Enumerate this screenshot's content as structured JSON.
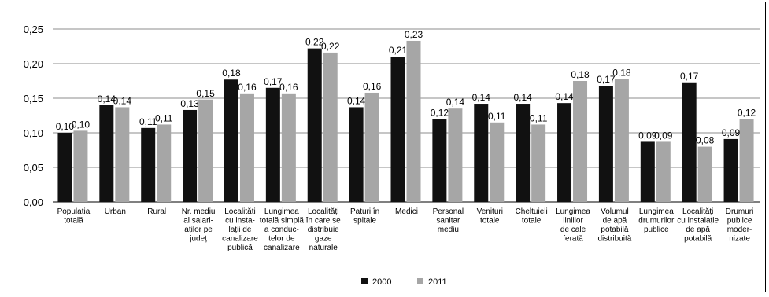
{
  "chart_data": {
    "type": "bar",
    "ylim": [
      0,
      0.25
    ],
    "yticks": [
      "0,00",
      "0,05",
      "0,10",
      "0,15",
      "0,20",
      "0,25"
    ],
    "grid": true,
    "legend_position": "bottom-center",
    "categories": [
      [
        "Populația",
        "totală"
      ],
      [
        "Urban"
      ],
      [
        "Rural"
      ],
      [
        "Nr. mediu",
        "al salari-",
        "aților pe",
        "județ"
      ],
      [
        "Localități",
        "cu insta-",
        "lații de",
        "canalizare",
        "publică"
      ],
      [
        "Lungimea",
        "totală simplă",
        "a conduc-",
        "telor de",
        "canalizare"
      ],
      [
        "Localități",
        "în care se",
        "distribuie",
        "gaze",
        "naturale"
      ],
      [
        "Paturi în",
        "spitale"
      ],
      [
        "Medici"
      ],
      [
        "Personal",
        "sanitar",
        "mediu"
      ],
      [
        "Venituri",
        "totale"
      ],
      [
        "Cheltuieli",
        "totale"
      ],
      [
        "Lungimea",
        "liniilor",
        "de cale",
        "ferată"
      ],
      [
        "Volumul",
        "de apă",
        "potabilă",
        "distribuită"
      ],
      [
        "Lungimea",
        "drumurilor",
        "publice"
      ],
      [
        "Localități",
        "cu instalație",
        "de apă",
        "potabilă"
      ],
      [
        "Drumuri",
        "publice",
        "moder-",
        "nizate"
      ]
    ],
    "series": [
      {
        "name": "2000",
        "color": "#111111",
        "values": [
          0.1,
          0.14,
          0.107,
          0.133,
          0.177,
          0.165,
          0.222,
          0.137,
          0.21,
          0.12,
          0.142,
          0.142,
          0.143,
          0.168,
          0.087,
          0.173,
          0.091
        ],
        "labels": [
          "0,10",
          "0,14",
          "0,11",
          "0,13",
          "0,18",
          "0,17",
          "0,22",
          "0,14",
          "0,21",
          "0,12",
          "0,14",
          "0,14",
          "0,14",
          "0,17",
          "0,09",
          "0,17",
          "0,09"
        ]
      },
      {
        "name": "2011",
        "color": "#a6a6a6",
        "values": [
          0.103,
          0.137,
          0.112,
          0.148,
          0.157,
          0.157,
          0.216,
          0.158,
          0.233,
          0.135,
          0.115,
          0.112,
          0.175,
          0.178,
          0.087,
          0.08,
          0.12
        ],
        "labels": [
          "0,10",
          "0,14",
          "0,11",
          "0,15",
          "0,16",
          "0,16",
          "0,22",
          "0,16",
          "0,23",
          "0,14",
          "0,11",
          "0,11",
          "0,18",
          "0,18",
          "0,09",
          "0,08",
          "0,12"
        ]
      }
    ]
  }
}
